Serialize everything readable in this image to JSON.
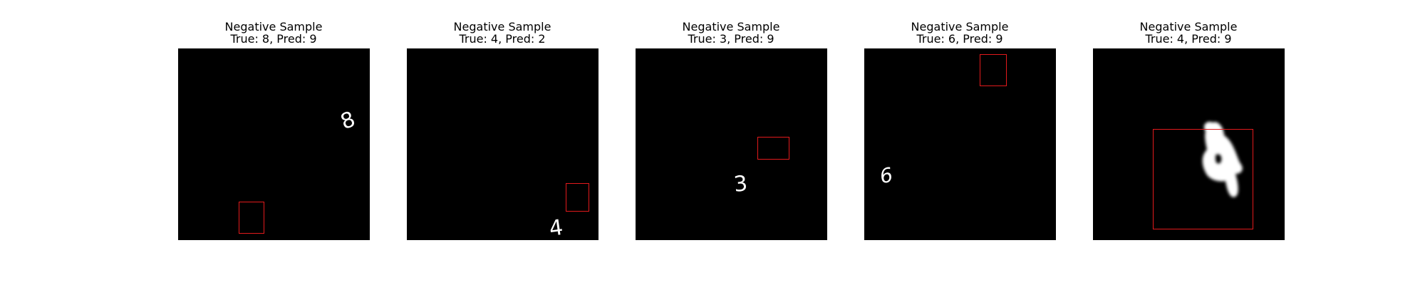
{
  "panels": [
    {
      "title": "Negative Sample",
      "subtitle": "True: 8, Pred: 9",
      "digit": "8",
      "box_color": "#e31a1c"
    },
    {
      "title": "Negative Sample",
      "subtitle": "True: 4, Pred: 2",
      "digit": "4",
      "box_color": "#e31a1c"
    },
    {
      "title": "Negative Sample",
      "subtitle": "True: 3, Pred: 9",
      "digit": "3",
      "box_color": "#e31a1c"
    },
    {
      "title": "Negative Sample",
      "subtitle": "True: 6, Pred: 9",
      "digit": "6",
      "box_color": "#e31a1c"
    },
    {
      "title": "Negative Sample",
      "subtitle": "True: 4, Pred: 9",
      "digit": "4",
      "box_color": "#e31a1c"
    }
  ]
}
